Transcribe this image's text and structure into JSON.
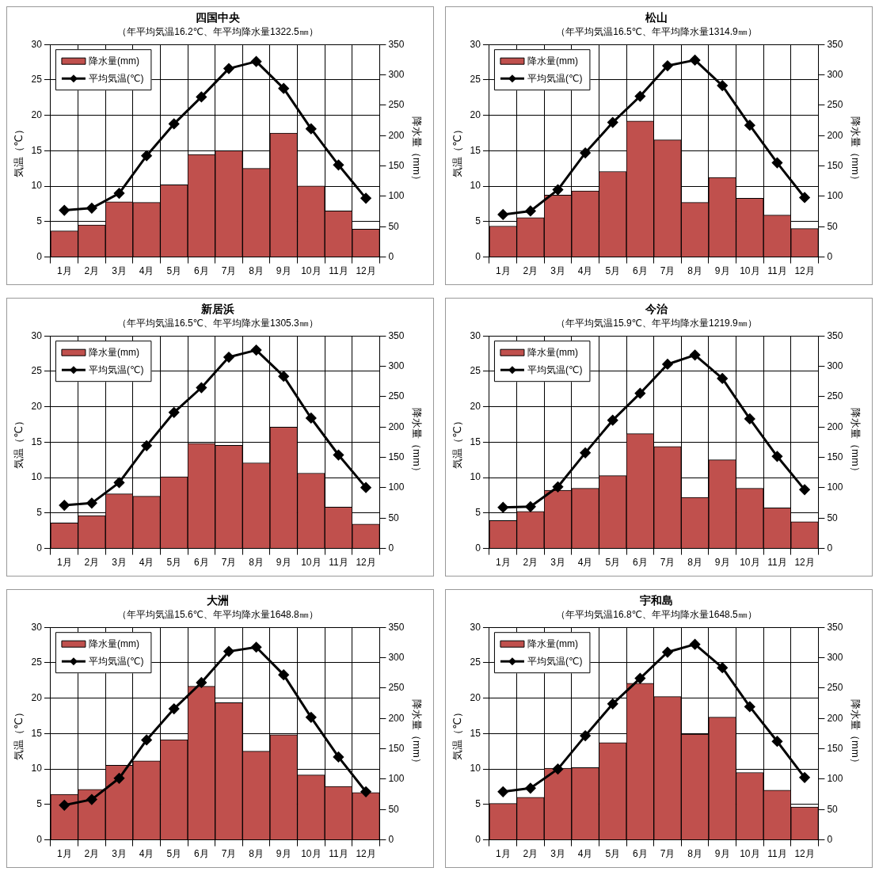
{
  "chart_data": [
    {
      "type": "bar",
      "title": "四国中央",
      "subtitle": "（年平均気温16.2℃、年平均降水量1322.5㎜）",
      "categories": [
        "1月",
        "2月",
        "3月",
        "4月",
        "5月",
        "6月",
        "7月",
        "8月",
        "9月",
        "10月",
        "11月",
        "12月"
      ],
      "ylabel": "気温（℃）",
      "y2label": "降水量（mm）",
      "ylim": [
        0,
        30
      ],
      "yticks": [
        0,
        5,
        10,
        15,
        20,
        25,
        30
      ],
      "y2lim": [
        0,
        350
      ],
      "y2ticks": [
        0,
        50,
        100,
        150,
        200,
        250,
        300,
        350
      ],
      "grid": true,
      "legend": "top left",
      "marker": "diamond",
      "series": [
        {
          "name": "降水量(mm)",
          "axis": "y2",
          "color": "#c0504d",
          "values": [
            43,
            53,
            91,
            90,
            119,
            169,
            175,
            146,
            204,
            117,
            76,
            46
          ]
        },
        {
          "name": "平均気温(℃)",
          "type": "line",
          "color": "#000000",
          "values": [
            6.6,
            6.9,
            9.0,
            14.3,
            18.8,
            22.6,
            26.6,
            27.6,
            23.8,
            18.1,
            13.0,
            8.3
          ]
        }
      ]
    },
    {
      "type": "bar",
      "title": "松山",
      "subtitle": "（年平均気温16.5℃、年平均降水量1314.9㎜）",
      "categories": [
        "1月",
        "2月",
        "3月",
        "4月",
        "5月",
        "6月",
        "7月",
        "8月",
        "9月",
        "10月",
        "11月",
        "12月"
      ],
      "ylabel": "気温（℃）",
      "y2label": "降水量（mm）",
      "ylim": [
        0,
        30
      ],
      "yticks": [
        0,
        5,
        10,
        15,
        20,
        25,
        30
      ],
      "y2lim": [
        0,
        350
      ],
      "y2ticks": [
        0,
        50,
        100,
        150,
        200,
        250,
        300,
        350
      ],
      "grid": true,
      "legend": "top left",
      "marker": "diamond",
      "series": [
        {
          "name": "降水量(mm)",
          "axis": "y2",
          "color": "#c0504d",
          "values": [
            51,
            65,
            102,
            109,
            141,
            224,
            193,
            90,
            131,
            97,
            69,
            47
          ]
        },
        {
          "name": "平均気温(℃)",
          "type": "line",
          "color": "#000000",
          "values": [
            6.0,
            6.5,
            9.5,
            14.7,
            19.0,
            22.7,
            27.0,
            27.8,
            24.2,
            18.6,
            13.3,
            8.4
          ]
        }
      ]
    },
    {
      "type": "bar",
      "title": "新居浜",
      "subtitle": "（年平均気温16.5℃、年平均降水量1305.3㎜）",
      "categories": [
        "1月",
        "2月",
        "3月",
        "4月",
        "5月",
        "6月",
        "7月",
        "8月",
        "9月",
        "10月",
        "11月",
        "12月"
      ],
      "ylabel": "気温（℃）",
      "y2label": "降水量（mm）",
      "ylim": [
        0,
        30
      ],
      "yticks": [
        0,
        5,
        10,
        15,
        20,
        25,
        30
      ],
      "y2lim": [
        0,
        350
      ],
      "y2ticks": [
        0,
        50,
        100,
        150,
        200,
        250,
        300,
        350
      ],
      "grid": true,
      "legend": "top left",
      "marker": "diamond",
      "series": [
        {
          "name": "降水量(mm)",
          "axis": "y2",
          "color": "#c0504d",
          "values": [
            42,
            54,
            90,
            86,
            118,
            173,
            170,
            141,
            200,
            124,
            68,
            40
          ]
        },
        {
          "name": "平均気温(℃)",
          "type": "line",
          "color": "#000000",
          "values": [
            6.1,
            6.4,
            9.3,
            14.5,
            19.2,
            22.7,
            27.0,
            28.0,
            24.3,
            18.4,
            13.2,
            8.6
          ]
        }
      ]
    },
    {
      "type": "bar",
      "title": "今治",
      "subtitle": "（年平均気温15.9℃、年平均降水量1219.9㎜）",
      "categories": [
        "1月",
        "2月",
        "3月",
        "4月",
        "5月",
        "6月",
        "7月",
        "8月",
        "9月",
        "10月",
        "11月",
        "12月"
      ],
      "ylabel": "気温（℃）",
      "y2label": "降水量（mm）",
      "ylim": [
        0,
        30
      ],
      "yticks": [
        0,
        5,
        10,
        15,
        20,
        25,
        30
      ],
      "y2lim": [
        0,
        350
      ],
      "y2ticks": [
        0,
        50,
        100,
        150,
        200,
        250,
        300,
        350
      ],
      "grid": true,
      "legend": "top left",
      "marker": "diamond",
      "series": [
        {
          "name": "降水量(mm)",
          "axis": "y2",
          "color": "#c0504d",
          "values": [
            46,
            61,
            96,
            99,
            120,
            189,
            168,
            84,
            146,
            99,
            67,
            44
          ]
        },
        {
          "name": "平均気温(℃)",
          "type": "line",
          "color": "#000000",
          "values": [
            5.8,
            5.9,
            8.7,
            13.5,
            18.1,
            21.9,
            26.0,
            27.3,
            24.0,
            18.3,
            13.0,
            8.3
          ]
        }
      ]
    },
    {
      "type": "bar",
      "title": "大洲",
      "subtitle": "（年平均気温15.6℃、年平均降水量1648.8㎜）",
      "categories": [
        "1月",
        "2月",
        "3月",
        "4月",
        "5月",
        "6月",
        "7月",
        "8月",
        "9月",
        "10月",
        "11月",
        "12月"
      ],
      "ylabel": "気温（℃）",
      "y2label": "降水量（mm）",
      "ylim": [
        0,
        30
      ],
      "yticks": [
        0,
        5,
        10,
        15,
        20,
        25,
        30
      ],
      "y2lim": [
        0,
        350
      ],
      "y2ticks": [
        0,
        50,
        100,
        150,
        200,
        250,
        300,
        350
      ],
      "grid": true,
      "legend": "top left",
      "marker": "diamond",
      "series": [
        {
          "name": "降水量(mm)",
          "axis": "y2",
          "color": "#c0504d",
          "values": [
            75,
            83,
            123,
            130,
            165,
            253,
            226,
            146,
            173,
            107,
            88,
            78
          ]
        },
        {
          "name": "平均気温(℃)",
          "type": "line",
          "color": "#000000",
          "values": [
            4.9,
            5.7,
            8.7,
            14.1,
            18.5,
            22.2,
            26.6,
            27.2,
            23.3,
            17.3,
            11.7,
            6.8
          ]
        }
      ]
    },
    {
      "type": "bar",
      "title": "宇和島",
      "subtitle": "（年平均気温16.8℃、年平均降水量1648.5㎜）",
      "categories": [
        "1月",
        "2月",
        "3月",
        "4月",
        "5月",
        "6月",
        "7月",
        "8月",
        "9月",
        "10月",
        "11月",
        "12月"
      ],
      "ylabel": "気温（℃）",
      "y2label": "降水量（mm）",
      "ylim": [
        0,
        30
      ],
      "yticks": [
        0,
        5,
        10,
        15,
        20,
        25,
        30
      ],
      "y2lim": [
        0,
        350
      ],
      "y2ticks": [
        0,
        50,
        100,
        150,
        200,
        250,
        300,
        350
      ],
      "grid": true,
      "legend": "top left",
      "marker": "diamond",
      "series": [
        {
          "name": "降水量(mm)",
          "axis": "y2",
          "color": "#c0504d",
          "values": [
            60,
            70,
            118,
            119,
            160,
            258,
            236,
            174,
            202,
            111,
            82,
            54
          ]
        },
        {
          "name": "平均気温(℃)",
          "type": "line",
          "color": "#000000",
          "values": [
            6.8,
            7.3,
            10.0,
            14.7,
            19.2,
            22.8,
            26.5,
            27.6,
            24.3,
            18.8,
            13.9,
            8.8
          ]
        }
      ]
    }
  ]
}
